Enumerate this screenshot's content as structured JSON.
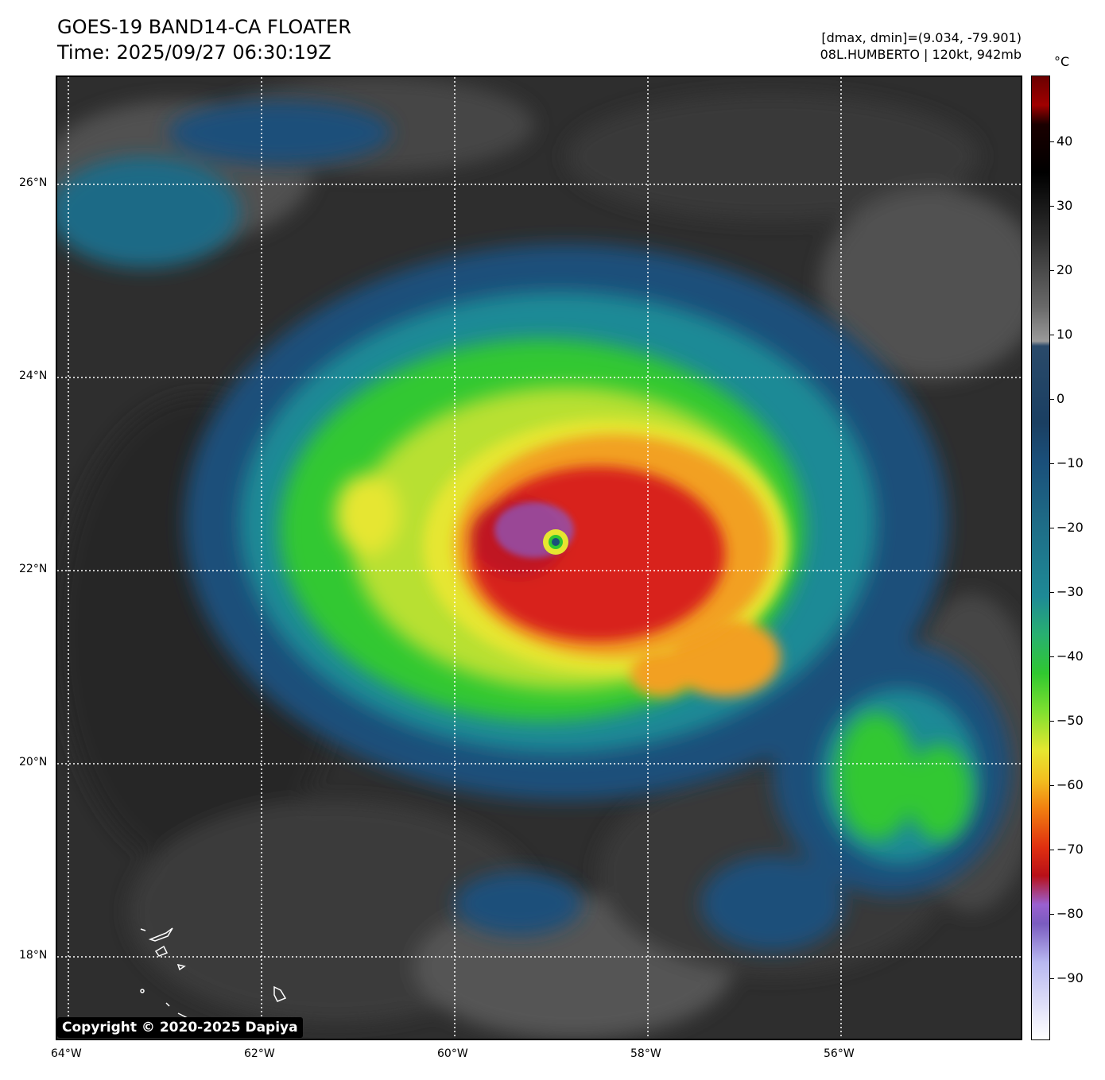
{
  "header": {
    "title_line1": "GOES-19 BAND14-CA FLOATER",
    "title_line2": "Time: 2025/09/27 06:30:19Z",
    "info_line1": "[dmax, dmin]=(9.034, -79.901)",
    "info_line2": "08L.HUMBERTO | 120kt, 942mb"
  },
  "map": {
    "lon_labels": [
      "64°W",
      "62°W",
      "60°W",
      "58°W",
      "56°W"
    ],
    "lat_labels": [
      "26°N",
      "24°N",
      "22°N",
      "20°N",
      "18°N"
    ],
    "copyright": "Copyright © 2020-2025 Dapiya"
  },
  "colorbar": {
    "unit": "°C",
    "ticks": [
      "40",
      "30",
      "20",
      "10",
      "0",
      "−10",
      "−20",
      "−30",
      "−40",
      "−50",
      "−60",
      "−70",
      "−80",
      "−90"
    ],
    "range": [
      50,
      -100
    ]
  },
  "colors": {
    "eyewall_red": "#d8201a",
    "cold_purple": "#8a5cc8",
    "orange": "#f2a020",
    "yellow": "#e6e630",
    "green": "#30c830",
    "teal": "#1e8a96",
    "blue": "#1a4f7a",
    "gray": "#5a5a5a"
  }
}
